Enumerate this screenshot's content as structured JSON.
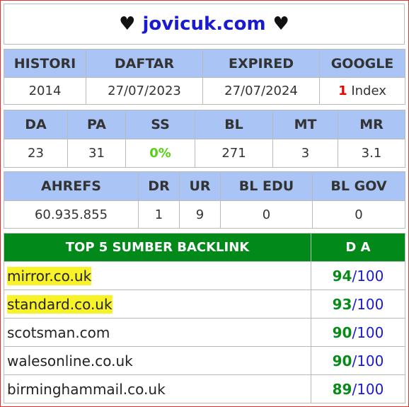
{
  "title": {
    "left_heart": "♥",
    "domain": "jovicuk.com",
    "right_heart": "♥"
  },
  "table1": {
    "headers": [
      "HISTORI",
      "DAFTAR",
      "EXPIRED",
      "GOOGLE"
    ],
    "values": {
      "histori": "2014",
      "daftar": "27/07/2023",
      "expired": "27/07/2024",
      "google_count": "1",
      "google_label": "Index"
    }
  },
  "table2": {
    "headers": [
      "DA",
      "PA",
      "SS",
      "BL",
      "MT",
      "MR"
    ],
    "values": [
      "23",
      "31",
      "0%",
      "271",
      "3",
      "3.1"
    ]
  },
  "table3": {
    "headers": [
      "AHREFS",
      "DR",
      "UR",
      "BL EDU",
      "BL GOV"
    ],
    "values": [
      "60.935.855",
      "1",
      "9",
      "0",
      "0"
    ]
  },
  "backlinks": {
    "header_source": "TOP 5 SUMBER BACKLINK",
    "header_da": "D A",
    "rows": [
      {
        "site": "mirror.co.uk",
        "da": "94",
        "max": "/100",
        "highlighted": true
      },
      {
        "site": "standard.co.uk",
        "da": "93",
        "max": "/100",
        "highlighted": true
      },
      {
        "site": "scotsman.com",
        "da": "90",
        "max": "/100",
        "highlighted": false
      },
      {
        "site": "walesonline.co.uk",
        "da": "90",
        "max": "/100",
        "highlighted": false
      },
      {
        "site": "birminghammail.co.uk",
        "da": "89",
        "max": "/100",
        "highlighted": false
      }
    ]
  },
  "colors": {
    "header_blue": "#a9c4f5",
    "header_green": "#018a1a",
    "domain_blue": "#1a1ad0",
    "highlight": "#f8f228"
  }
}
